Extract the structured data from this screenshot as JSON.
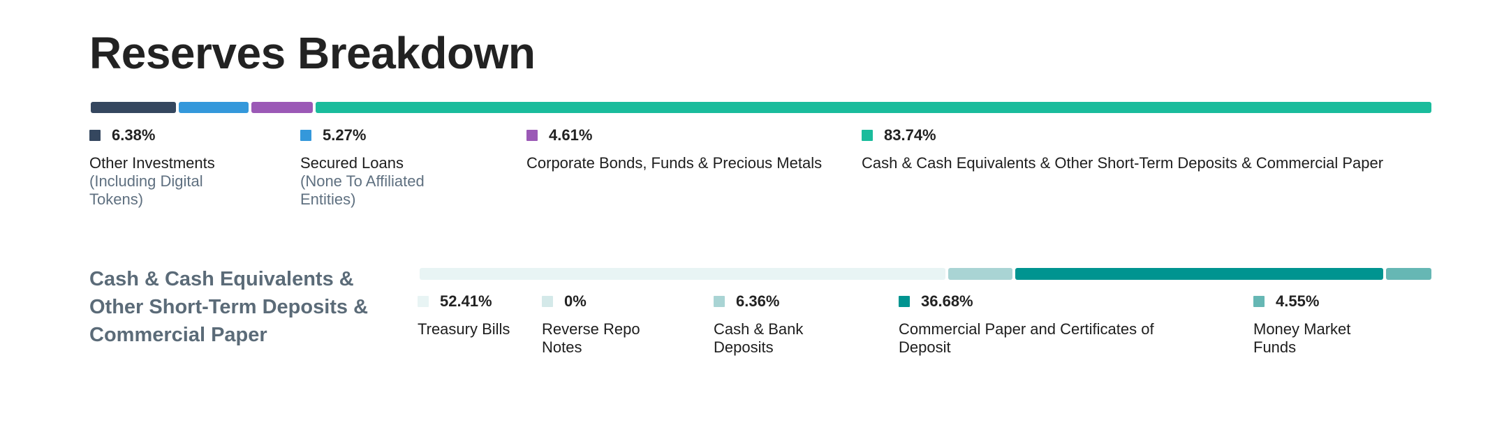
{
  "page": {
    "title": "Reserves Breakdown",
    "section_label": "Cash & Cash Equivalents & Other Short-Term Deposits & Commercial Paper"
  },
  "chart_data": [
    {
      "type": "bar",
      "stacked": true,
      "orientation": "horizontal",
      "title": "Reserves Breakdown",
      "categories": [
        "Other Investments (Including Digital Tokens)",
        "Secured Loans (None To Affiliated Entities)",
        "Corporate Bonds, Funds & Precious Metals",
        "Cash & Cash Equivalents & Other Short-Term Deposits & Commercial Paper"
      ],
      "values": [
        6.38,
        5.27,
        4.61,
        83.74
      ],
      "items": [
        {
          "label": "Other Investments",
          "sublabel": "(Including Digital Tokens)",
          "pct_text": "6.38%",
          "value": 6.38,
          "color": "#35475f"
        },
        {
          "label": "Secured Loans",
          "sublabel": "(None To Affiliated Entities)",
          "pct_text": "5.27%",
          "value": 5.27,
          "color": "#3498db"
        },
        {
          "label": "Corporate Bonds, Funds & Precious Metals",
          "sublabel": "",
          "pct_text": "4.61%",
          "value": 4.61,
          "color": "#9b59b6"
        },
        {
          "label": "Cash & Cash Equivalents & Other Short-Term Deposits & Commercial Paper",
          "sublabel": "",
          "pct_text": "83.74%",
          "value": 83.74,
          "color": "#1abc9c"
        }
      ]
    },
    {
      "type": "bar",
      "stacked": true,
      "orientation": "horizontal",
      "title": "Cash & Cash Equivalents & Other Short-Term Deposits & Commercial Paper",
      "categories": [
        "Treasury Bills",
        "Reverse Repo Notes",
        "Cash & Bank Deposits",
        "Commercial Paper and Certificates of Deposit",
        "Money Market Funds"
      ],
      "values": [
        52.41,
        0,
        6.36,
        36.68,
        4.55
      ],
      "items": [
        {
          "label": "Treasury Bills",
          "pct_text": "52.41%",
          "value": 52.41,
          "color": "#e8f4f4"
        },
        {
          "label": "Reverse Repo Notes",
          "pct_text": "0%",
          "value": 0,
          "color": "#d4e9e9"
        },
        {
          "label": "Cash & Bank Deposits",
          "pct_text": "6.36%",
          "value": 6.36,
          "color": "#a9d4d4"
        },
        {
          "label": "Commercial Paper and Certificates of Deposit",
          "pct_text": "36.68%",
          "value": 36.68,
          "color": "#009490"
        },
        {
          "label": "Money Market Funds",
          "pct_text": "4.55%",
          "value": 4.55,
          "color": "#66b7b4"
        }
      ]
    }
  ]
}
